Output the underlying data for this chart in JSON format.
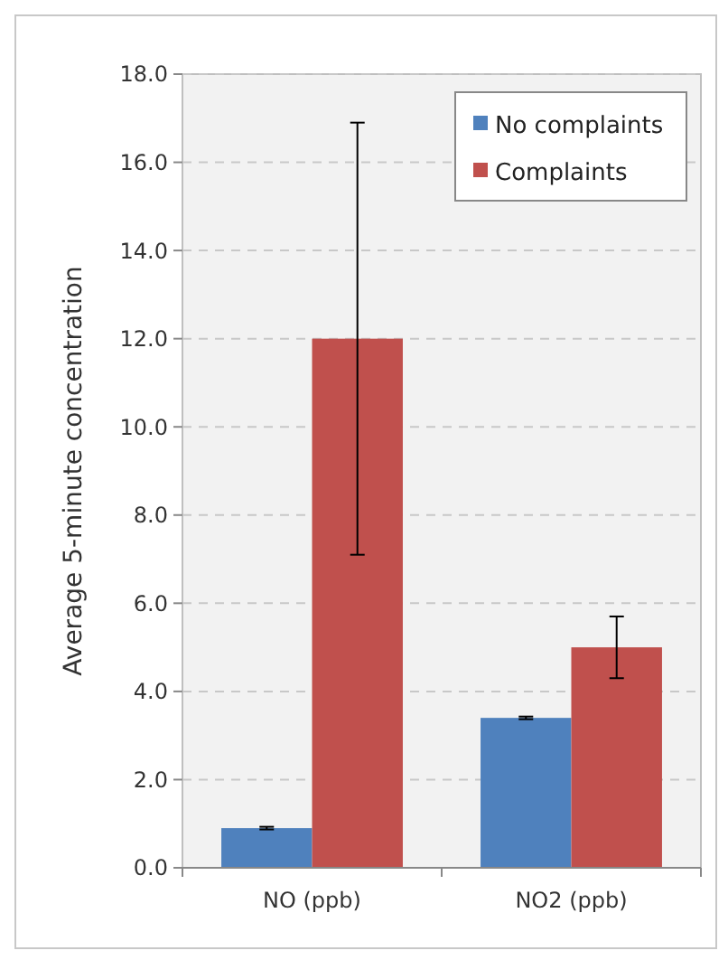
{
  "chart_data": {
    "type": "bar",
    "ylabel": "Average 5-minute concentration",
    "categories": [
      "NO (ppb)",
      "NO2 (ppb)"
    ],
    "series": [
      {
        "name": "No complaints",
        "color": "#4f81bd",
        "values": [
          0.9,
          3.4
        ],
        "errors": [
          0.03,
          0.03
        ]
      },
      {
        "name": "Complaints",
        "color": "#c0504d",
        "values": [
          12.0,
          5.0
        ],
        "errors": [
          [
            7.1,
            16.9
          ],
          [
            4.3,
            5.7
          ]
        ]
      }
    ],
    "ylim": [
      0,
      18
    ],
    "yticks": [
      {
        "value": 0,
        "label": "0.0"
      },
      {
        "value": 2,
        "label": "2.0"
      },
      {
        "value": 4,
        "label": "4.0"
      },
      {
        "value": 6,
        "label": "6.0"
      },
      {
        "value": 8,
        "label": "8.0"
      },
      {
        "value": 10,
        "label": "10.0"
      },
      {
        "value": 12,
        "label": "12.0"
      },
      {
        "value": 14,
        "label": "14.0"
      },
      {
        "value": 16,
        "label": "16.0"
      },
      {
        "value": 18,
        "label": "18.0"
      }
    ],
    "grid": "y",
    "legend": "top right"
  }
}
